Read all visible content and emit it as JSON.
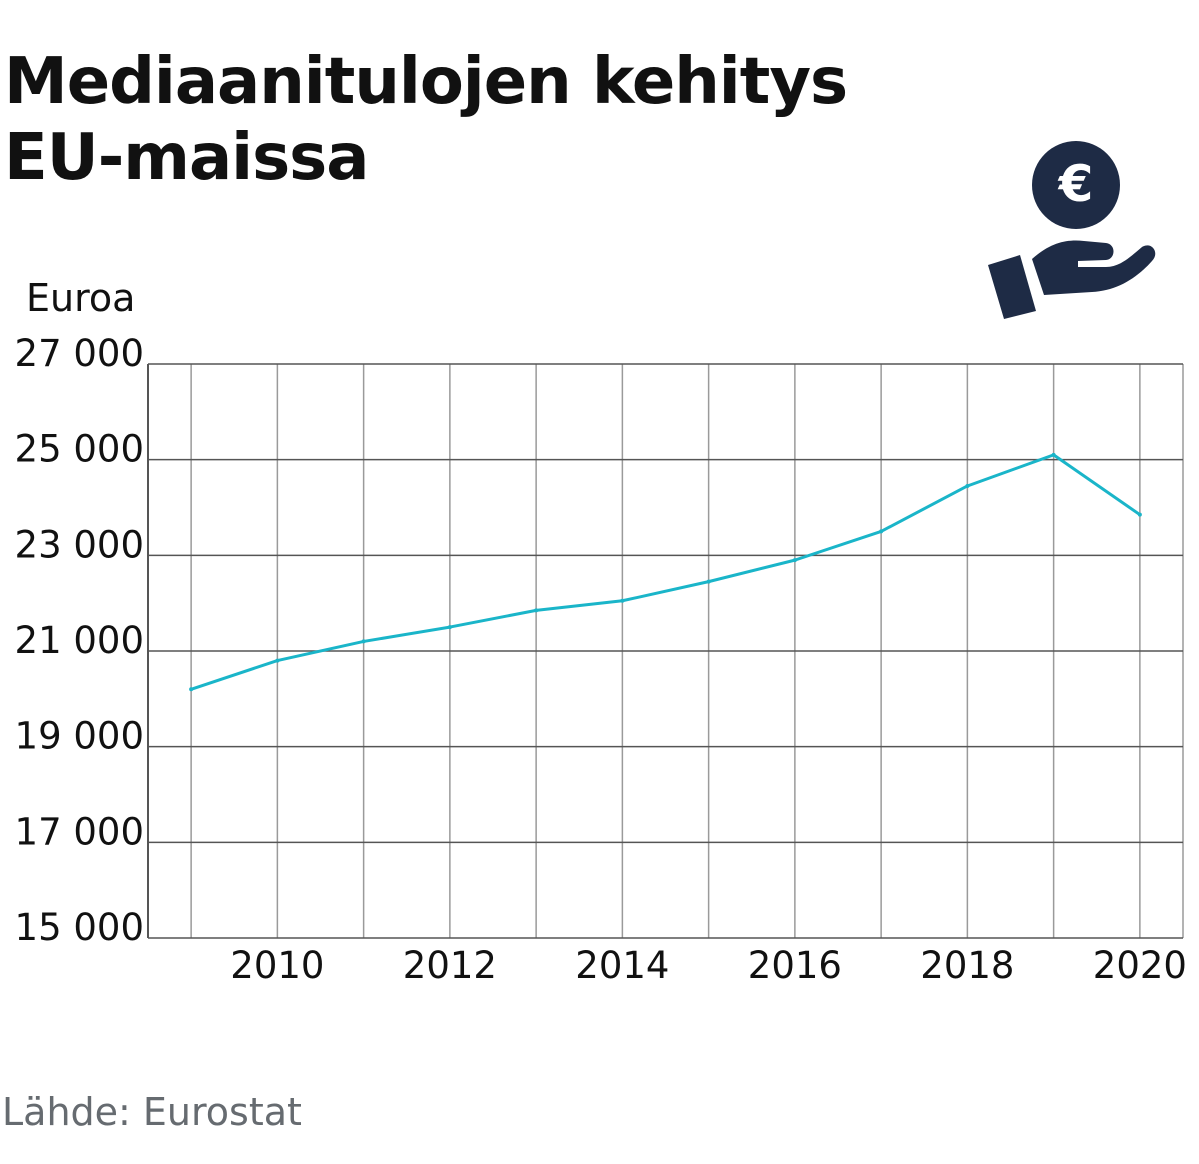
{
  "title": {
    "line1": "Mediaanitulojen kehitys",
    "line2": "EU-maissa"
  },
  "unit_label": "Euroa",
  "source": "Lähde: Eurostat",
  "icon": "hand-holding-euro-coin-icon",
  "colors": {
    "line": "#1ab5c9",
    "icon": "#1e2b45",
    "text": "#111111",
    "source": "#666b70",
    "grid": "#444444"
  },
  "chart_data": {
    "type": "line",
    "title": "Mediaanitulojen kehitys EU-maissa",
    "xlabel": "",
    "ylabel": "Euroa",
    "xlim": [
      2008.5,
      2020.5
    ],
    "ylim": [
      15000,
      27000
    ],
    "grid": true,
    "x_ticks": [
      "2010",
      "2012",
      "2014",
      "2016",
      "2018",
      "2020"
    ],
    "y_ticks": [
      "15 000",
      "17 000",
      "19 000",
      "21 000",
      "23 000",
      "25 000",
      "27 000"
    ],
    "series": [
      {
        "name": "Mediaanitulot",
        "x": [
          2009,
          2010,
          2011,
          2012,
          2013,
          2014,
          2015,
          2016,
          2017,
          2018,
          2019,
          2020
        ],
        "values": [
          20200,
          20800,
          21200,
          21500,
          21850,
          22050,
          22450,
          22900,
          23500,
          24450,
          25100,
          23850
        ]
      }
    ]
  }
}
